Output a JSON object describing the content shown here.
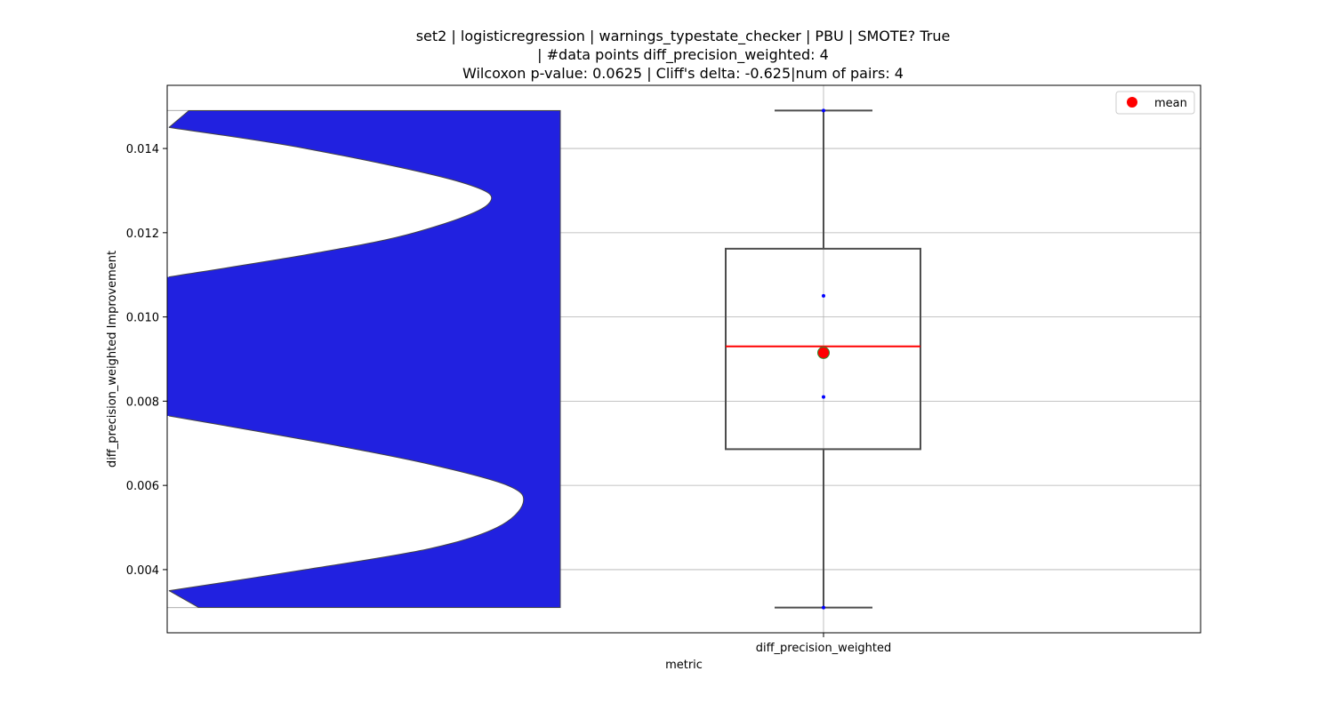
{
  "chart_data": {
    "type": "box",
    "title_lines": [
      "set2 | logisticregression | warnings_typestate_checker | PBU | SMOTE? True",
      "| #data points diff_precision_weighted: 4",
      "Wilcoxon p-value: 0.0625 | Cliff's delta: -0.625|num of pairs: 4"
    ],
    "xlabel": "metric",
    "ylabel": "diff_precision_weighted Improvement",
    "categories": [
      "diff_precision_weighted"
    ],
    "ylim": [
      0.0025,
      0.0155
    ],
    "yticks": [
      0.004,
      0.006,
      0.008,
      0.01,
      0.012,
      0.014
    ],
    "ytick_labels": [
      "0.004",
      "0.006",
      "0.008",
      "0.010",
      "0.012",
      "0.014"
    ],
    "grid": true,
    "legend": {
      "position": "top-right",
      "entries": [
        {
          "label": "mean",
          "color": "#ff0000"
        }
      ]
    },
    "colors": {
      "violin_fill": "#2121e0",
      "violin_edge": "#444444",
      "box_edge": "#4d4d4d",
      "median_line": "#ff0000",
      "mean_marker": "#ff0000",
      "mean_marker_edge": "#2e8b2e",
      "points": "#0000ff",
      "grid": "#b0b0b0"
    },
    "points": [
      0.0031,
      0.0081,
      0.0105,
      0.0149
    ],
    "box": {
      "whisker_low": 0.0031,
      "q1": 0.00686,
      "median": 0.0093,
      "q3": 0.01162,
      "whisker_high": 0.0149,
      "mean": 0.00915
    },
    "violin": {
      "y_min": 0.0031,
      "y_max": 0.0149,
      "samples": [
        [
          0.0031,
          0.076
        ],
        [
          0.0035,
          0.0
        ],
        [
          0.004,
          0.349
        ],
        [
          0.0045,
          0.667
        ],
        [
          0.005,
          0.838
        ],
        [
          0.00558,
          0.905
        ],
        [
          0.006,
          0.865
        ],
        [
          0.0065,
          0.667
        ],
        [
          0.007,
          0.397
        ],
        [
          0.00765,
          0.0
        ],
        [
          0.008,
          0.0
        ],
        [
          0.009,
          0.0
        ],
        [
          0.01,
          0.0
        ],
        [
          0.01095,
          0.0
        ],
        [
          0.0115,
          0.365
        ],
        [
          0.012,
          0.627
        ],
        [
          0.01268,
          0.816
        ],
        [
          0.0132,
          0.746
        ],
        [
          0.014,
          0.349
        ],
        [
          0.0145,
          0.0
        ],
        [
          0.0149,
          0.051
        ]
      ]
    }
  }
}
